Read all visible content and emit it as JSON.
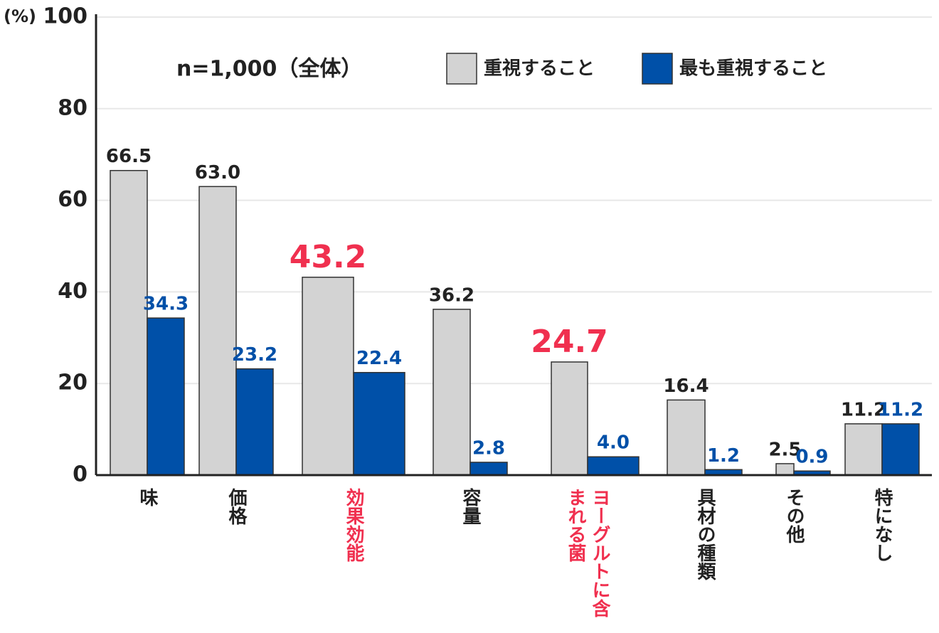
{
  "chart_data": {
    "type": "bar",
    "y_unit": "(%)",
    "note": "n=1,000（全体）",
    "categories": [
      "味",
      "価格",
      "効果効能",
      "容量",
      "ヨーグルトに含まれる菌",
      "具材の種類",
      "その他",
      "特になし"
    ],
    "series": [
      {
        "name": "重視すること",
        "color": "#d3d3d3",
        "label_color": "#222222",
        "values": [
          66.5,
          63.0,
          43.2,
          36.2,
          24.7,
          16.4,
          2.5,
          11.2
        ],
        "value_labels": [
          "66.5",
          "63.0",
          "43.2",
          "36.2",
          "24.7",
          "16.4",
          "2.5",
          "11.2"
        ]
      },
      {
        "name": "最も重視すること",
        "color": "#0050a8",
        "label_color": "#0050a8",
        "values": [
          34.3,
          23.2,
          22.4,
          2.8,
          4.0,
          1.2,
          0.9,
          11.2
        ],
        "value_labels": [
          "34.3",
          "23.2",
          "22.4",
          "2.8",
          "4.0",
          "1.2",
          "0.9",
          "11.2"
        ]
      }
    ],
    "highlight": [
      2,
      4
    ],
    "highlight_color": "#f0304f",
    "ylim": [
      0,
      100
    ],
    "yticks": [
      0,
      20,
      40,
      60,
      80,
      100
    ],
    "grid": true,
    "legend": "top"
  }
}
